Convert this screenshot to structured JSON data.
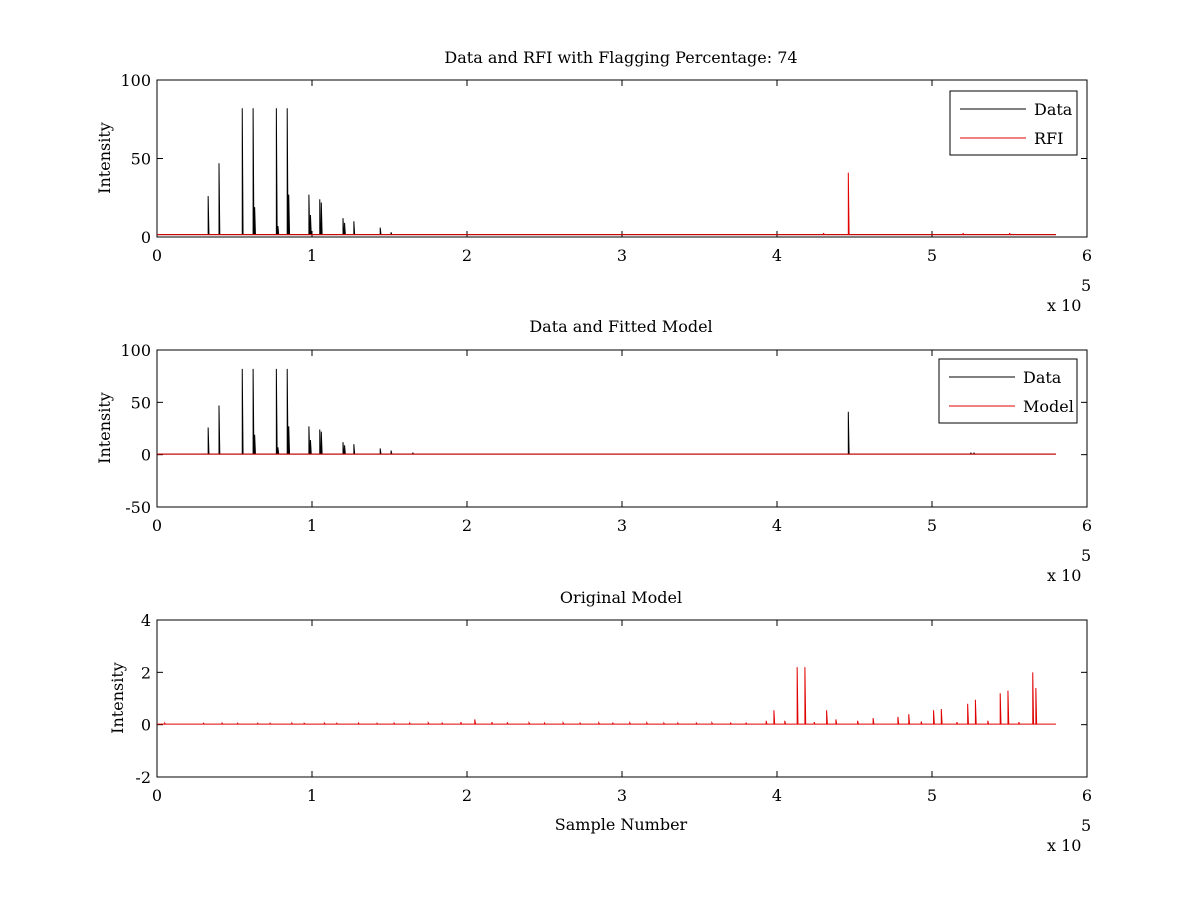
{
  "chart_data": [
    {
      "type": "line",
      "title": "Data and RFI with Flagging Percentage: 74",
      "xlabel": "",
      "ylabel": "Intensity",
      "xlim": [
        0,
        600000
      ],
      "ylim": [
        0,
        100
      ],
      "xticks": [
        "0",
        "1",
        "2",
        "3",
        "4",
        "5",
        "6"
      ],
      "yticks": [
        "0",
        "50",
        "100"
      ],
      "x_exponent": {
        "base": "x 10",
        "power": "5"
      },
      "grid": false,
      "legend_position": "top-right",
      "x_end": 580000,
      "series": [
        {
          "name": "Data",
          "color": "#000000",
          "baseline": 1.5,
          "spikes": [
            [
              33000,
              26
            ],
            [
              40000,
              47
            ],
            [
              55000,
              82
            ],
            [
              62000,
              82
            ],
            [
              63000,
              19
            ],
            [
              77000,
              82
            ],
            [
              78000,
              7
            ],
            [
              84000,
              82
            ],
            [
              85000,
              27
            ],
            [
              98000,
              27
            ],
            [
              99000,
              14
            ],
            [
              105000,
              24
            ],
            [
              106000,
              22
            ],
            [
              120000,
              12
            ],
            [
              121000,
              9
            ],
            [
              127000,
              10
            ],
            [
              144000,
              6
            ],
            [
              151000,
              3
            ]
          ]
        },
        {
          "name": "RFI",
          "color": "#e00000",
          "baseline": 1.5,
          "spikes": [
            [
              446000,
              41
            ],
            [
              430000,
              2.5
            ],
            [
              520000,
              2.5
            ],
            [
              550000,
              2.5
            ]
          ]
        }
      ]
    },
    {
      "type": "line",
      "title": "Data and Fitted Model",
      "xlabel": "",
      "ylabel": "Intensity",
      "xlim": [
        0,
        600000
      ],
      "ylim": [
        -50,
        100
      ],
      "xticks": [
        "0",
        "1",
        "2",
        "3",
        "4",
        "5",
        "6"
      ],
      "yticks": [
        "-50",
        "0",
        "50",
        "100"
      ],
      "x_exponent": {
        "base": "x 10",
        "power": "5"
      },
      "grid": false,
      "legend_position": "top-right",
      "x_end": 580000,
      "series": [
        {
          "name": "Data",
          "color": "#000000",
          "baseline": 0.5,
          "spikes": [
            [
              33000,
              26
            ],
            [
              40000,
              47
            ],
            [
              55000,
              82
            ],
            [
              62000,
              82
            ],
            [
              63000,
              19
            ],
            [
              77000,
              82
            ],
            [
              78000,
              7
            ],
            [
              84000,
              82
            ],
            [
              85000,
              27
            ],
            [
              98000,
              27
            ],
            [
              99000,
              14
            ],
            [
              105000,
              24
            ],
            [
              106000,
              22
            ],
            [
              120000,
              12
            ],
            [
              121000,
              9
            ],
            [
              127000,
              10
            ],
            [
              144000,
              6
            ],
            [
              151000,
              4
            ],
            [
              165000,
              2
            ],
            [
              446000,
              41
            ],
            [
              525000,
              2
            ],
            [
              527000,
              2
            ]
          ]
        },
        {
          "name": "Model",
          "color": "#e00000",
          "baseline": 0.5,
          "spikes": []
        }
      ]
    },
    {
      "type": "line",
      "title": "Original Model",
      "xlabel": "Sample Number",
      "ylabel": "Intensity",
      "xlim": [
        0,
        600000
      ],
      "ylim": [
        -2,
        4
      ],
      "xticks": [
        "0",
        "1",
        "2",
        "3",
        "4",
        "5",
        "6"
      ],
      "yticks": [
        "-2",
        "0",
        "2",
        "4"
      ],
      "x_exponent": {
        "base": "x 10",
        "power": "5"
      },
      "grid": false,
      "legend_position": "none",
      "x_end": 580000,
      "series": [
        {
          "color": "#e00000",
          "baseline": 0.02,
          "spikes": [
            [
              5000,
              0.06
            ],
            [
              30000,
              0.05
            ],
            [
              42000,
              0.06
            ],
            [
              52000,
              0.05
            ],
            [
              65000,
              0.05
            ],
            [
              73000,
              0.05
            ],
            [
              87000,
              0.06
            ],
            [
              95000,
              0.05
            ],
            [
              108000,
              0.06
            ],
            [
              116000,
              0.05
            ],
            [
              130000,
              0.06
            ],
            [
              142000,
              0.05
            ],
            [
              153000,
              0.06
            ],
            [
              163000,
              0.06
            ],
            [
              175000,
              0.07
            ],
            [
              184000,
              0.06
            ],
            [
              196000,
              0.1
            ],
            [
              205000,
              0.2
            ],
            [
              216000,
              0.1
            ],
            [
              226000,
              0.09
            ],
            [
              240000,
              0.07
            ],
            [
              250000,
              0.06
            ],
            [
              262000,
              0.07
            ],
            [
              273000,
              0.06
            ],
            [
              285000,
              0.07
            ],
            [
              294000,
              0.08
            ],
            [
              305000,
              0.07
            ],
            [
              316000,
              0.07
            ],
            [
              327000,
              0.06
            ],
            [
              336000,
              0.06
            ],
            [
              348000,
              0.06
            ],
            [
              358000,
              0.07
            ],
            [
              370000,
              0.08
            ],
            [
              380000,
              0.08
            ],
            [
              393000,
              0.15
            ],
            [
              398000,
              0.55
            ],
            [
              405000,
              0.15
            ],
            [
              413000,
              2.2
            ],
            [
              418000,
              2.2
            ],
            [
              424000,
              0.1
            ],
            [
              432000,
              0.55
            ],
            [
              438000,
              0.2
            ],
            [
              452000,
              0.15
            ],
            [
              462000,
              0.25
            ],
            [
              478000,
              0.3
            ],
            [
              485000,
              0.4
            ],
            [
              493000,
              0.12
            ],
            [
              501000,
              0.55
            ],
            [
              506000,
              0.6
            ],
            [
              516000,
              0.1
            ],
            [
              523000,
              0.8
            ],
            [
              528000,
              0.95
            ],
            [
              536000,
              0.15
            ],
            [
              544000,
              1.2
            ],
            [
              549000,
              1.3
            ],
            [
              556000,
              0.1
            ],
            [
              565000,
              2.0
            ],
            [
              567000,
              1.4
            ]
          ]
        }
      ]
    }
  ]
}
